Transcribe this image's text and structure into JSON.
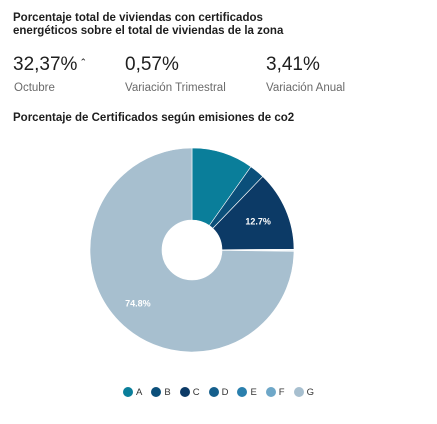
{
  "header": {
    "title": "Porcentaje total de viviendas con certificados energéticos sobre el total de viviendas de la zona"
  },
  "stats": [
    {
      "value": "32,37%",
      "trend": "up",
      "trend_glyph": "⌃",
      "label": "Octubre"
    },
    {
      "value": "0,57%",
      "label": "Variación Trimestral"
    },
    {
      "value": "3,41%",
      "label": "Variación Anual"
    }
  ],
  "chart_data": {
    "type": "pie",
    "variant": "donut",
    "title": "Porcentaje de Certificados según emisiones de co2",
    "categories": [
      "A",
      "B",
      "C",
      "D",
      "E",
      "F",
      "G"
    ],
    "values": [
      9.8,
      2.4,
      12.7,
      0.1,
      0.1,
      0.1,
      74.8
    ],
    "data_labels": [
      "",
      "",
      "12.7%",
      "",
      "",
      "",
      "74.8%"
    ],
    "colors": [
      "#0a7e9a",
      "#0b4f7a",
      "#0c3a66",
      "#155f8c",
      "#2a7fad",
      "#6ea7c8",
      "#a7bfcf"
    ],
    "legend": "bottom-center",
    "start_angle": "top",
    "direction": "clockwise"
  }
}
